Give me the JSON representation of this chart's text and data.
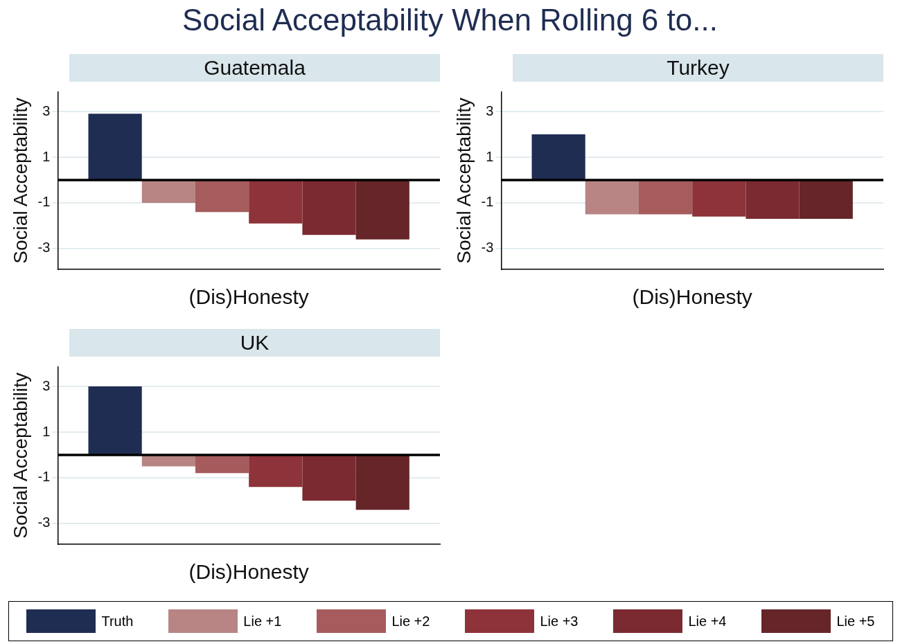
{
  "chart_data": [
    {
      "type": "bar",
      "title": "Social Acceptability When Rolling 6 to...",
      "subtitle": "Guatemala",
      "xlabel": "(Dis)Honesty",
      "ylabel": "Social Acceptability",
      "categories": [
        null
      ],
      "series": [
        {
          "name": "Truth",
          "color": "#1f2d52",
          "values": [
            2.9
          ]
        },
        {
          "name": "Lie +1",
          "color": "#b88484",
          "values": [
            -1.0
          ]
        },
        {
          "name": "Lie +2",
          "color": "#a65c5c",
          "values": [
            -1.4
          ]
        },
        {
          "name": "Lie +3",
          "color": "#8d3339",
          "values": [
            -1.9
          ]
        },
        {
          "name": "Lie +4",
          "color": "#7a2a30",
          "values": [
            -2.4
          ]
        },
        {
          "name": "Lie +5",
          "color": "#662528",
          "values": [
            -2.6
          ]
        }
      ],
      "ylim": [
        -3.9,
        3.85
      ],
      "yticks": [
        -3,
        -1,
        1,
        3
      ],
      "grid": "y",
      "legend": "bottom",
      "ref_lines": [
        {
          "axis": "y",
          "value": 0,
          "color": "#000000"
        }
      ]
    },
    {
      "type": "bar",
      "subtitle": "Turkey",
      "xlabel": "(Dis)Honesty",
      "ylabel": "Social Acceptability",
      "categories": [
        null
      ],
      "series": [
        {
          "color": "#1f2d52",
          "values": [
            2.0
          ]
        },
        {
          "color": "#b88484",
          "values": [
            -1.5
          ]
        },
        {
          "color": "#a65c5c",
          "values": [
            -1.5
          ]
        },
        {
          "color": "#8d3339",
          "values": [
            -1.6
          ]
        },
        {
          "color": "#7a2a30",
          "values": [
            -1.7
          ]
        },
        {
          "color": "#662528",
          "values": [
            -1.7
          ]
        }
      ],
      "ylim": [
        -3.9,
        3.85
      ],
      "yticks": [
        -3,
        -1,
        1,
        3
      ],
      "grid": "y",
      "ref_lines": [
        {
          "axis": "y",
          "value": 0,
          "color": "#000000"
        }
      ]
    },
    {
      "type": "bar",
      "subtitle": "UK",
      "xlabel": "(Dis)Honesty",
      "ylabel": "Social Acceptability",
      "categories": [
        null
      ],
      "series": [
        {
          "color": "#1f2d52",
          "values": [
            3.0
          ]
        },
        {
          "color": "#b88484",
          "values": [
            -0.5
          ]
        },
        {
          "color": "#a65c5c",
          "values": [
            -0.8
          ]
        },
        {
          "color": "#8d3339",
          "values": [
            -1.4
          ]
        },
        {
          "color": "#7a2a30",
          "values": [
            -2.0
          ]
        },
        {
          "color": "#662528",
          "values": [
            -2.4
          ]
        }
      ],
      "ylim": [
        -3.9,
        3.85
      ],
      "yticks": [
        -3,
        -1,
        1,
        3
      ],
      "grid": "y",
      "ref_lines": [
        {
          "axis": "y",
          "value": 0,
          "color": "#000000"
        }
      ]
    }
  ]
}
